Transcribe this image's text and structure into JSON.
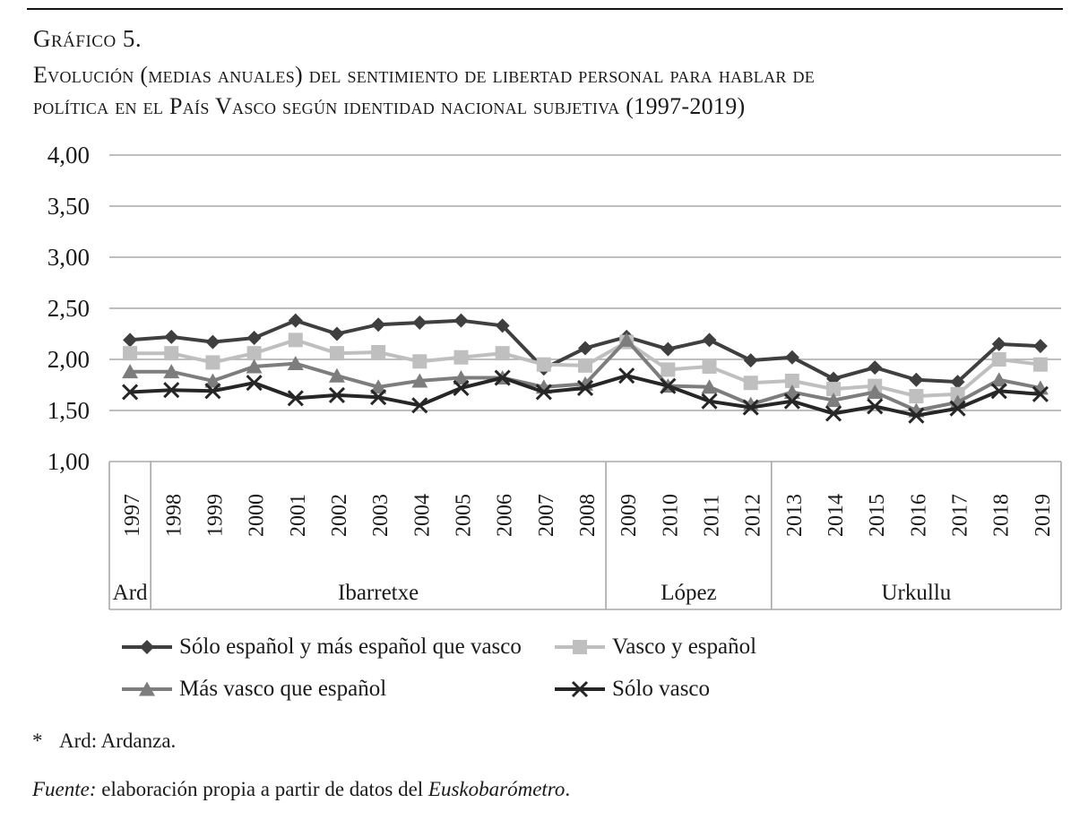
{
  "page": {
    "title": "Gráfico 5.",
    "subtitle_line1": "Evolución (medias anuales) del sentimiento de libertad personal para hablar de",
    "subtitle_line2": "política en el País Vasco según identidad nacional subjetiva (1997-2019)",
    "footnote_marker": "*",
    "footnote_text": "Ard: Ardanza.",
    "source_label": "Fuente:",
    "source_text": "elaboración propia a partir de datos del",
    "source_name": "Euskobarómetro",
    "source_period": "."
  },
  "chart_data": {
    "type": "line",
    "title": "Gráfico 5. Evolución (medias anuales) del sentimiento de libertad personal para hablar de política en el País Vasco según identidad nacional subjetiva (1997-2019)",
    "xlabel": "",
    "ylabel": "",
    "ylim": [
      1.0,
      4.0
    ],
    "grid": true,
    "legend_position": "bottom",
    "x_tick_labels": [
      "1997",
      "1998",
      "1999",
      "2000",
      "2001",
      "2002",
      "2003",
      "2004",
      "2005",
      "2006",
      "2007",
      "2008",
      "2009",
      "2010",
      "2011",
      "2012",
      "2013",
      "2014",
      "2015",
      "2016",
      "2017",
      "2018",
      "2019"
    ],
    "y_ticks": [
      {
        "value": 4.0,
        "label": "4,00"
      },
      {
        "value": 3.5,
        "label": "3,50"
      },
      {
        "value": 3.0,
        "label": "3,00"
      },
      {
        "value": 2.5,
        "label": "2,50"
      },
      {
        "value": 2.0,
        "label": "2,00"
      },
      {
        "value": 1.5,
        "label": "1,50"
      },
      {
        "value": 1.0,
        "label": "1,00"
      }
    ],
    "series": [
      {
        "name": "Sólo español y más español que vasco",
        "marker": "diamond",
        "color": "#3f3f3f",
        "values": [
          2.19,
          2.22,
          2.17,
          2.21,
          2.38,
          2.25,
          2.34,
          2.36,
          2.38,
          2.33,
          1.91,
          2.11,
          2.22,
          2.1,
          2.19,
          1.99,
          2.02,
          1.81,
          1.92,
          1.8,
          1.78,
          2.15,
          2.13
        ]
      },
      {
        "name": "Vasco y español",
        "marker": "square",
        "color": "#bfbfbf",
        "values": [
          2.06,
          2.06,
          1.97,
          2.06,
          2.19,
          2.06,
          2.07,
          1.98,
          2.02,
          2.06,
          1.95,
          1.94,
          2.17,
          1.9,
          1.93,
          1.77,
          1.79,
          1.71,
          1.74,
          1.64,
          1.66,
          2.0,
          1.95
        ]
      },
      {
        "name": "Más vasco que español",
        "marker": "triangle",
        "color": "#7d7d7d",
        "values": [
          1.88,
          1.88,
          1.79,
          1.93,
          1.96,
          1.84,
          1.73,
          1.79,
          1.82,
          1.82,
          1.73,
          1.76,
          2.19,
          1.74,
          1.73,
          1.56,
          1.68,
          1.6,
          1.68,
          1.5,
          1.58,
          1.8,
          1.72
        ]
      },
      {
        "name": "Sólo vasco",
        "marker": "x",
        "color": "#262626",
        "values": [
          1.68,
          1.7,
          1.69,
          1.77,
          1.62,
          1.65,
          1.63,
          1.55,
          1.72,
          1.82,
          1.68,
          1.72,
          1.84,
          1.74,
          1.59,
          1.53,
          1.59,
          1.47,
          1.54,
          1.45,
          1.52,
          1.69,
          1.66
        ]
      }
    ],
    "eras": [
      {
        "label": "Ard",
        "start_year": 1997,
        "end_year": 1997
      },
      {
        "label": "Ibarretxe",
        "start_year": 1998,
        "end_year": 2008
      },
      {
        "label": "López",
        "start_year": 2009,
        "end_year": 2012
      },
      {
        "label": "Urkullu",
        "start_year": 2013,
        "end_year": 2019
      }
    ]
  }
}
